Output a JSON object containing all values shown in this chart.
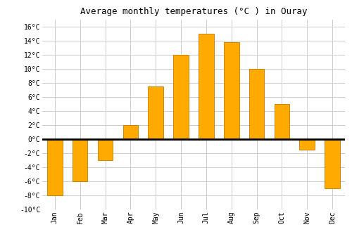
{
  "months": [
    "Jan",
    "Feb",
    "Mar",
    "Apr",
    "May",
    "Jun",
    "Jul",
    "Aug",
    "Sep",
    "Oct",
    "Nov",
    "Dec"
  ],
  "values": [
    -8.0,
    -6.0,
    -3.0,
    2.0,
    7.5,
    12.0,
    15.0,
    13.8,
    10.0,
    5.0,
    -1.5,
    -7.0
  ],
  "bar_color": "#FFAA00",
  "bar_edge_color": "#C07800",
  "title": "Average monthly temperatures (°C ) in Ouray",
  "ylim": [
    -10,
    17
  ],
  "yticks": [
    -10,
    -8,
    -6,
    -4,
    -2,
    0,
    2,
    4,
    6,
    8,
    10,
    12,
    14,
    16
  ],
  "ytick_labels": [
    "-10°C",
    "-8°C",
    "-6°C",
    "-4°C",
    "-2°C",
    "0°C",
    "2°C",
    "4°C",
    "6°C",
    "8°C",
    "10°C",
    "12°C",
    "14°C",
    "16°C"
  ],
  "background_color": "#ffffff",
  "grid_color": "#cccccc",
  "title_fontsize": 9,
  "tick_fontsize": 7,
  "font_family": "monospace"
}
